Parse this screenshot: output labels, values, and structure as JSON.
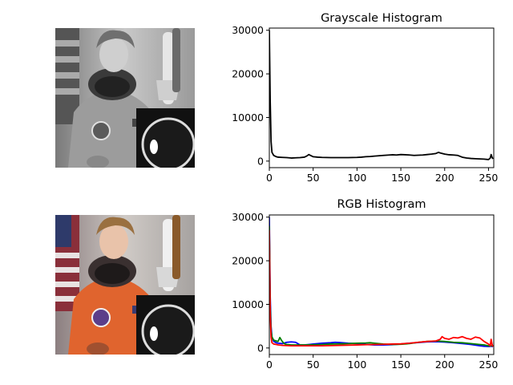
{
  "images": [
    {
      "description_key": "grayscale-astronaut",
      "mode": "grayscale"
    },
    {
      "description_key": "rgb-astronaut",
      "mode": "rgb"
    }
  ],
  "chart_data": [
    {
      "type": "line",
      "title": "Grayscale Histogram",
      "xlabel": "",
      "ylabel": "",
      "xlim": [
        0,
        256
      ],
      "ylim": [
        -1500,
        30500
      ],
      "xticks": [
        0,
        50,
        100,
        150,
        200,
        250
      ],
      "yticks": [
        0,
        10000,
        20000,
        30000
      ],
      "grid": false,
      "series": [
        {
          "color": "#000000",
          "x": [
            0,
            1,
            2,
            3,
            5,
            8,
            10,
            15,
            20,
            25,
            30,
            35,
            40,
            43,
            45,
            47,
            50,
            55,
            60,
            70,
            80,
            90,
            100,
            105,
            110,
            115,
            120,
            130,
            140,
            145,
            150,
            155,
            160,
            165,
            170,
            175,
            180,
            185,
            190,
            193,
            196,
            200,
            205,
            210,
            215,
            220,
            225,
            230,
            235,
            240,
            245,
            250,
            252,
            253,
            254,
            255
          ],
          "values": [
            30000,
            14000,
            4500,
            2000,
            1300,
            1000,
            900,
            850,
            800,
            700,
            750,
            800,
            900,
            1200,
            1500,
            1300,
            1000,
            900,
            850,
            800,
            800,
            800,
            850,
            900,
            1000,
            1050,
            1150,
            1300,
            1450,
            1400,
            1500,
            1450,
            1400,
            1300,
            1350,
            1400,
            1500,
            1600,
            1750,
            2000,
            1800,
            1600,
            1450,
            1400,
            1300,
            900,
            700,
            600,
            550,
            500,
            450,
            350,
            700,
            1500,
            900,
            500
          ]
        }
      ]
    },
    {
      "type": "line",
      "title": "RGB Histogram",
      "xlabel": "",
      "ylabel": "",
      "xlim": [
        0,
        256
      ],
      "ylim": [
        -1500,
        30500
      ],
      "xticks": [
        0,
        50,
        100,
        150,
        200,
        250
      ],
      "yticks": [
        0,
        10000,
        20000,
        30000
      ],
      "grid": false,
      "series": [
        {
          "color": "#0000ff",
          "x": [
            0,
            1,
            2,
            3,
            5,
            8,
            10,
            15,
            20,
            25,
            30,
            35,
            40,
            45,
            50,
            55,
            60,
            70,
            75,
            80,
            90,
            100,
            110,
            120,
            130,
            140,
            150,
            160,
            170,
            180,
            190,
            200,
            210,
            220,
            230,
            240,
            245,
            250,
            253,
            255
          ],
          "values": [
            30000,
            12000,
            5000,
            2500,
            1500,
            1200,
            1100,
            1000,
            1300,
            1400,
            1300,
            700,
            700,
            800,
            900,
            1000,
            1100,
            1200,
            1300,
            1250,
            1100,
            1000,
            800,
            700,
            700,
            750,
            900,
            1100,
            1250,
            1400,
            1450,
            1350,
            1200,
            1000,
            800,
            500,
            400,
            350,
            400,
            300
          ]
        },
        {
          "color": "#008000",
          "x": [
            0,
            1,
            2,
            3,
            5,
            8,
            10,
            12,
            14,
            16,
            18,
            20,
            25,
            30,
            40,
            50,
            60,
            70,
            80,
            90,
            100,
            110,
            115,
            120,
            130,
            140,
            150,
            160,
            170,
            180,
            190,
            200,
            210,
            220,
            230,
            240,
            245,
            250,
            253,
            255
          ],
          "values": [
            28000,
            10000,
            4000,
            2500,
            1800,
            1600,
            1500,
            2400,
            1700,
            1200,
            900,
            800,
            700,
            700,
            700,
            750,
            800,
            900,
            950,
            1000,
            1100,
            1150,
            1200,
            1100,
            900,
            800,
            850,
            1000,
            1300,
            1500,
            1600,
            1500,
            1300,
            1200,
            1000,
            800,
            700,
            500,
            500,
            400
          ]
        },
        {
          "color": "#ff0000",
          "x": [
            0,
            1,
            2,
            3,
            5,
            8,
            10,
            15,
            20,
            25,
            30,
            40,
            50,
            60,
            70,
            80,
            90,
            100,
            110,
            120,
            130,
            140,
            150,
            160,
            170,
            180,
            185,
            190,
            195,
            197,
            200,
            205,
            210,
            215,
            220,
            225,
            230,
            235,
            240,
            245,
            250,
            252,
            253,
            254,
            255
          ],
          "values": [
            27000,
            8000,
            2500,
            1200,
            900,
            800,
            700,
            600,
            550,
            500,
            500,
            500,
            500,
            500,
            550,
            600,
            650,
            700,
            750,
            800,
            850,
            900,
            950,
            1100,
            1300,
            1500,
            1550,
            1600,
            2000,
            2600,
            2200,
            2000,
            2400,
            2300,
            2600,
            2200,
            2000,
            2500,
            2300,
            1500,
            900,
            500,
            2000,
            900,
            300
          ]
        }
      ]
    }
  ]
}
